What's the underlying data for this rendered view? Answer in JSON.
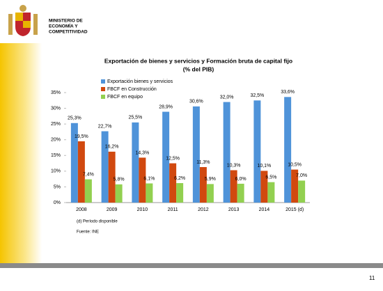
{
  "header": {
    "lines": [
      "MINISTERIO DE",
      "ECONOMÍA Y",
      "COMPETITIVIDAD"
    ]
  },
  "chart_data": {
    "type": "bar",
    "title": "Exportación de bienes y servicios y Formación bruta de capital fijo",
    "subtitle": "(% del PIB)",
    "categories": [
      "2008",
      "2009",
      "2010",
      "2011",
      "2012",
      "2013",
      "2014",
      "2015 (d)"
    ],
    "series": [
      {
        "name": "Exportación bienes y servicios",
        "color": "#4f93d9",
        "values": [
          25.3,
          22.7,
          25.5,
          28.9,
          30.6,
          32.0,
          32.5,
          33.6
        ],
        "value_labels": [
          "25,3%",
          "22,7%",
          "25,5%",
          "28,9%",
          "30,6%",
          "32,0%",
          "32,5%",
          "33,6%"
        ]
      },
      {
        "name": "FBCF en Construcción",
        "color": "#d1490f",
        "values": [
          19.5,
          16.2,
          14.3,
          12.5,
          11.3,
          10.3,
          10.1,
          10.5
        ],
        "value_labels": [
          "19,5%",
          "16,2%",
          "14,3%",
          "12,5%",
          "11,3%",
          "10,3%",
          "10,1%",
          "10,5%"
        ]
      },
      {
        "name": "FBCF en equipo",
        "color": "#92d050",
        "values": [
          7.4,
          5.8,
          6.1,
          6.2,
          5.9,
          6.0,
          6.5,
          7.0
        ],
        "value_labels": [
          "7,4%",
          "5,8%",
          "6,1%",
          "6,2%",
          "5,9%",
          "6,0%",
          "6,5%",
          "7,0%"
        ]
      }
    ],
    "ylim": [
      0,
      35
    ],
    "yticks": [
      {
        "value": 0,
        "label": "0%"
      },
      {
        "value": 5,
        "label": "5%"
      },
      {
        "value": 10,
        "label": "10%"
      },
      {
        "value": 15,
        "label": "15%"
      },
      {
        "value": 20,
        "label": "20%"
      },
      {
        "value": 25,
        "label": "25%"
      },
      {
        "value": 30,
        "label": "30%"
      },
      {
        "value": 35,
        "label": "35%"
      }
    ]
  },
  "footnotes": [
    "(d) Período disponible",
    "Fuente: INE"
  ],
  "page_number": "11"
}
